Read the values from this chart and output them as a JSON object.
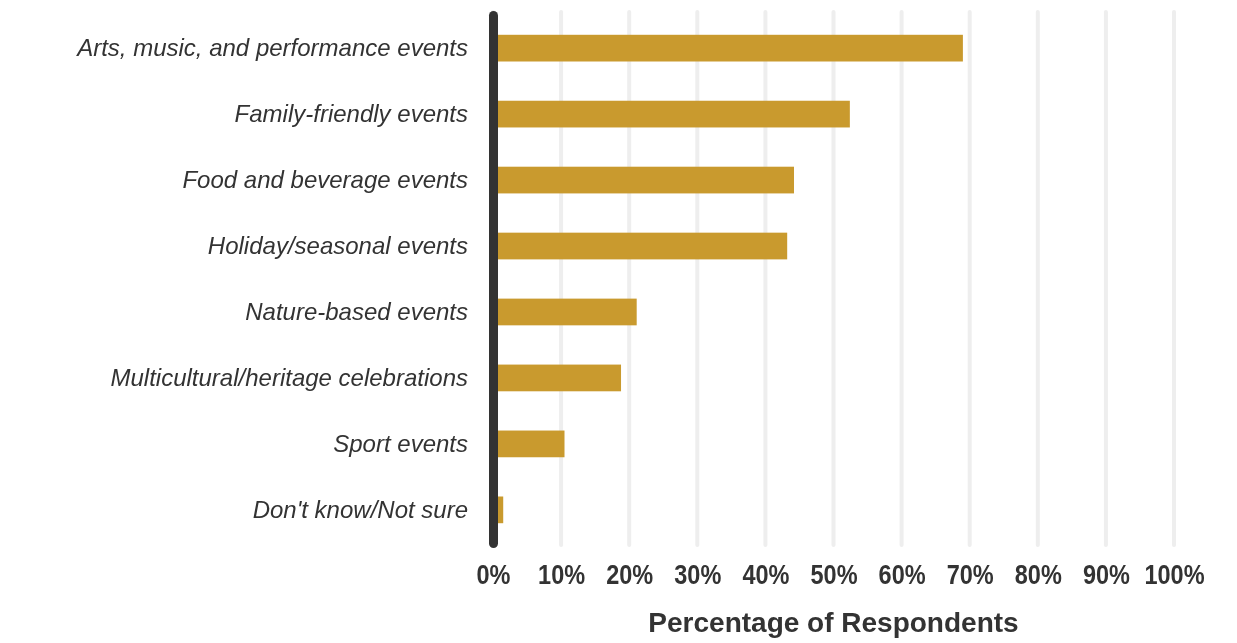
{
  "chart_data": {
    "type": "bar",
    "orientation": "horizontal",
    "xlabel": "Percentage of Respondents",
    "categories": [
      "Arts, music, and performance events",
      "Family-friendly events",
      "Food and beverage events",
      "Holiday/seasonal events",
      "Nature-based events",
      "Multicultural/heritage celebrations",
      "Sport events",
      "Don't know/Not sure"
    ],
    "values": [
      69,
      52.4,
      44.2,
      43.2,
      21.1,
      18.8,
      10.5,
      1.5
    ],
    "color": "#c99a2e",
    "xlim": [
      0,
      100
    ],
    "xticks": [
      {
        "value": 0,
        "label": "0%"
      },
      {
        "value": 10,
        "label": "10%"
      },
      {
        "value": 20,
        "label": "20%"
      },
      {
        "value": 30,
        "label": "30%"
      },
      {
        "value": 40,
        "label": "40%"
      },
      {
        "value": 50,
        "label": "50%"
      },
      {
        "value": 60,
        "label": "60%"
      },
      {
        "value": 70,
        "label": "70%"
      },
      {
        "value": 80,
        "label": "80%"
      },
      {
        "value": 90,
        "label": "90%"
      },
      {
        "value": 100,
        "label": "100%"
      }
    ],
    "grid": "x"
  }
}
